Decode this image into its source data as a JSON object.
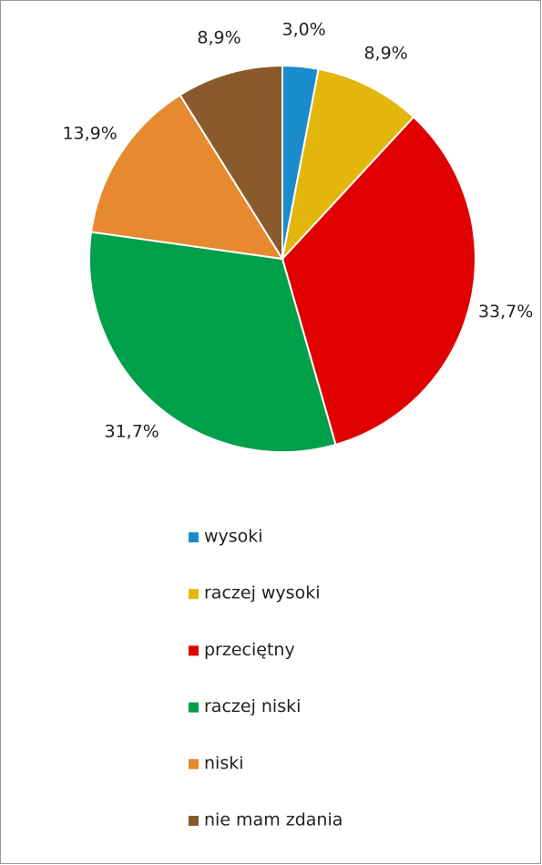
{
  "chart_data": {
    "type": "pie",
    "categories": [
      "wysoki",
      "raczej wysoki",
      "przeciętny",
      "raczej niski",
      "niski",
      "nie mam zdania"
    ],
    "values": [
      3.0,
      8.9,
      33.7,
      31.7,
      13.9,
      8.9
    ],
    "value_labels": [
      "3,0%",
      "8,9%",
      "33,7%",
      "31,7%",
      "13,9%",
      "8,9%"
    ],
    "colors": [
      "#1b8ccb",
      "#e3b60b",
      "#e10000",
      "#00a04b",
      "#e6892f",
      "#8a5a2c"
    ],
    "legend": "bottom"
  }
}
